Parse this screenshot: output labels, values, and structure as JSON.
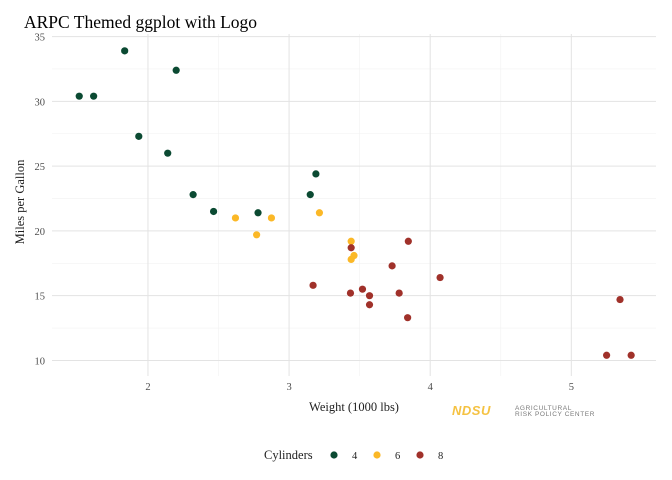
{
  "chart_data": {
    "type": "scatter",
    "title": "ARPC Themed ggplot with Logo",
    "xlabel": "Weight (1000 lbs)",
    "ylabel": "Miles per Gallon",
    "xlim": [
      1.32,
      5.6
    ],
    "ylim": [
      8.8,
      35.2
    ],
    "xticks": [
      2,
      3,
      4,
      5
    ],
    "yticks": [
      10,
      15,
      20,
      25,
      30,
      35
    ],
    "grid": true,
    "legend": {
      "title": "Cylinders",
      "placement": "bottom"
    },
    "series": [
      {
        "name": "4",
        "color": "#0b4a32",
        "points": [
          [
            1.513,
            30.4
          ],
          [
            1.615,
            30.4
          ],
          [
            1.835,
            33.9
          ],
          [
            1.935,
            27.3
          ],
          [
            2.14,
            26.0
          ],
          [
            2.2,
            32.4
          ],
          [
            2.32,
            22.8
          ],
          [
            2.465,
            21.5
          ],
          [
            2.78,
            21.4
          ],
          [
            3.15,
            22.8
          ],
          [
            3.19,
            24.4
          ]
        ]
      },
      {
        "name": "6",
        "color": "#fbb827",
        "points": [
          [
            2.62,
            21.0
          ],
          [
            2.77,
            19.7
          ],
          [
            2.875,
            21.0
          ],
          [
            3.215,
            21.4
          ],
          [
            3.44,
            19.2
          ],
          [
            3.44,
            17.8
          ],
          [
            3.46,
            18.1
          ]
        ]
      },
      {
        "name": "8",
        "color": "#a0312a",
        "points": [
          [
            3.17,
            15.8
          ],
          [
            3.435,
            15.2
          ],
          [
            3.44,
            18.7
          ],
          [
            3.52,
            15.5
          ],
          [
            3.57,
            15.0
          ],
          [
            3.57,
            14.3
          ],
          [
            3.73,
            17.3
          ],
          [
            3.78,
            15.2
          ],
          [
            3.84,
            13.3
          ],
          [
            3.845,
            19.2
          ],
          [
            4.07,
            16.4
          ],
          [
            5.25,
            10.4
          ],
          [
            5.345,
            14.7
          ],
          [
            5.424,
            10.4
          ]
        ]
      }
    ]
  },
  "logo": {
    "mark": "NDSU",
    "line1": "AGRICULTURAL",
    "line2": "RISK POLICY CENTER",
    "mark_color": "#f5c242",
    "text_color": "#7a7a7a"
  }
}
